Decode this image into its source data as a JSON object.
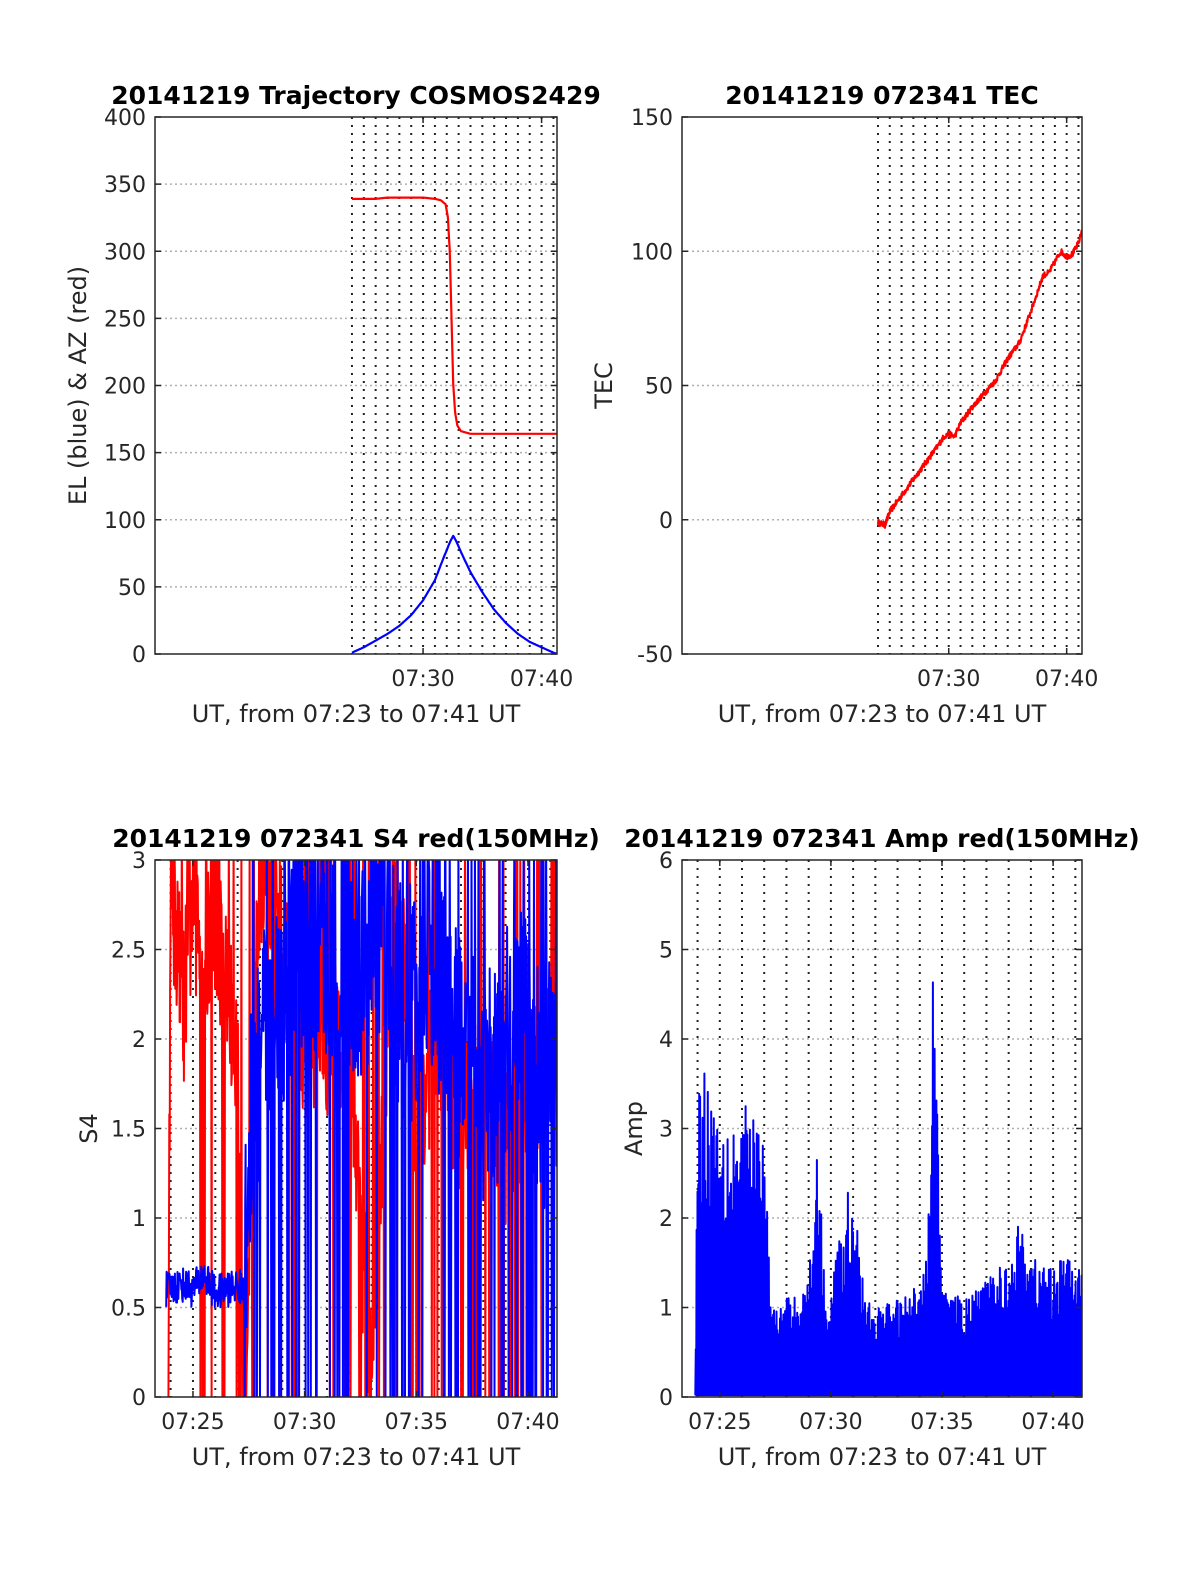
{
  "colors": {
    "el": "#0000ff",
    "az": "#ff0000",
    "tec": "#ff0000",
    "s4_red": "#ff0000",
    "s4_blue": "#0000ff",
    "amp": "#0000ff",
    "grid": "#b0b0b0",
    "axis": "#262626"
  },
  "chart_data": [
    {
      "type": "line",
      "title": "20141219 Trajectory COSMOS2429",
      "xlabel": "UT, from 07:23 to 07:41 UT",
      "ylabel": "EL (blue) & AZ (red)",
      "xlim": [
        7.383,
        41.3
      ],
      "ylim": [
        0,
        400
      ],
      "yticks": [
        0,
        50,
        100,
        150,
        200,
        250,
        300,
        350,
        400
      ],
      "xticks": [
        {
          "v": 30,
          "label": "07:30"
        },
        {
          "v": 40,
          "label": "07:40"
        }
      ],
      "grid": true,
      "series": [
        {
          "key": "az",
          "values": [
            [
              24.0,
              339
            ],
            [
              25.0,
              339
            ],
            [
              26.0,
              339
            ],
            [
              27.0,
              340
            ],
            [
              28.0,
              340
            ],
            [
              29.0,
              340
            ],
            [
              30.0,
              340
            ],
            [
              31.0,
              339
            ],
            [
              31.5,
              338
            ],
            [
              31.9,
              335
            ],
            [
              32.1,
              325
            ],
            [
              32.25,
              300
            ],
            [
              32.4,
              250
            ],
            [
              32.55,
              200
            ],
            [
              32.7,
              180
            ],
            [
              32.9,
              170
            ],
            [
              33.2,
              166
            ],
            [
              34.0,
              164
            ],
            [
              35.0,
              164
            ],
            [
              37.0,
              164
            ],
            [
              39.0,
              164
            ],
            [
              41.3,
              164
            ]
          ]
        },
        {
          "key": "el",
          "values": [
            [
              24.0,
              1
            ],
            [
              25.0,
              5
            ],
            [
              26.0,
              10
            ],
            [
              27.0,
              15
            ],
            [
              28.0,
              21
            ],
            [
              29.0,
              29
            ],
            [
              30.0,
              40
            ],
            [
              31.0,
              55
            ],
            [
              31.7,
              71
            ],
            [
              32.3,
              84
            ],
            [
              32.55,
              88
            ],
            [
              32.8,
              84
            ],
            [
              33.3,
              74
            ],
            [
              34.0,
              61
            ],
            [
              35.0,
              46
            ],
            [
              36.0,
              33
            ],
            [
              37.0,
              23
            ],
            [
              38.0,
              15
            ],
            [
              39.0,
              9
            ],
            [
              40.0,
              5
            ],
            [
              41.0,
              1
            ],
            [
              41.3,
              0
            ]
          ]
        }
      ]
    },
    {
      "type": "line",
      "title": "20141219 072341 TEC",
      "xlabel": "UT, from 07:23 to 07:41 UT",
      "ylabel": "TEC",
      "xlim": [
        7.383,
        41.3
      ],
      "ylim": [
        -50,
        150
      ],
      "yticks": [
        -50,
        0,
        50,
        100,
        150
      ],
      "xticks": [
        {
          "v": 30,
          "label": "07:30"
        },
        {
          "v": 40,
          "label": "07:40"
        }
      ],
      "grid": true,
      "series": [
        {
          "key": "tec",
          "values": [
            [
              24.0,
              -1
            ],
            [
              24.6,
              -2
            ],
            [
              25.0,
              3
            ],
            [
              26.0,
              9
            ],
            [
              27.0,
              15
            ],
            [
              28.0,
              21
            ],
            [
              29.0,
              27
            ],
            [
              29.6,
              31
            ],
            [
              30.0,
              32
            ],
            [
              30.5,
              31
            ],
            [
              31.0,
              36
            ],
            [
              32.0,
              42
            ],
            [
              33.0,
              47
            ],
            [
              34.0,
              52
            ],
            [
              35.0,
              60
            ],
            [
              36.0,
              66
            ],
            [
              37.0,
              78
            ],
            [
              38.0,
              91
            ],
            [
              38.5,
              92
            ],
            [
              39.0,
              96
            ],
            [
              39.5,
              100
            ],
            [
              40.0,
              98
            ],
            [
              40.5,
              99
            ],
            [
              41.0,
              103
            ],
            [
              41.3,
              108
            ]
          ]
        }
      ]
    },
    {
      "type": "line",
      "title": "20141219 072341 S4 red(150MHz)",
      "xlabel": "UT, from 07:23 to 07:41 UT",
      "ylabel": "S4",
      "xlim": [
        23.3,
        41.3
      ],
      "ylim": [
        0,
        3
      ],
      "yticks": [
        0,
        0.5,
        1,
        1.5,
        2,
        2.5,
        3
      ],
      "xticks": [
        {
          "v": 25,
          "label": "07:25"
        },
        {
          "v": 30,
          "label": "07:30"
        },
        {
          "v": 35,
          "label": "07:35"
        },
        {
          "v": 40,
          "label": "07:40"
        }
      ],
      "grid": true,
      "series": [
        {
          "key": "s4_red",
          "style": "noisy",
          "values": [
            [
              23.9,
              0
            ],
            [
              24.0,
              3
            ],
            [
              24.3,
              2.5
            ],
            [
              24.6,
              2.2
            ],
            [
              25.0,
              2.8
            ],
            [
              25.5,
              2.4
            ],
            [
              26.0,
              2.7
            ],
            [
              26.5,
              2.3
            ],
            [
              27.0,
              1.8
            ],
            [
              27.3,
              0
            ],
            [
              28.0,
              3
            ],
            [
              30.0,
              2.0
            ],
            [
              32.0,
              2.0
            ],
            [
              33.0,
              0
            ],
            [
              34.0,
              3
            ],
            [
              35.0,
              1.6
            ],
            [
              36.0,
              2.0
            ],
            [
              37.0,
              1.5
            ],
            [
              38.0,
              1.8
            ],
            [
              39.0,
              1.4
            ],
            [
              40.0,
              1.7
            ],
            [
              41.3,
              2.0
            ]
          ]
        },
        {
          "key": "s4_blue",
          "style": "noisy",
          "values": [
            [
              23.8,
              0.6
            ],
            [
              24.5,
              0.63
            ],
            [
              25.0,
              0.6
            ],
            [
              25.5,
              0.68
            ],
            [
              26.0,
              0.58
            ],
            [
              26.5,
              0.6
            ],
            [
              27.0,
              0.62
            ],
            [
              27.3,
              0.6
            ],
            [
              27.6,
              1.6
            ],
            [
              28.5,
              2.2
            ],
            [
              29.5,
              2.4
            ],
            [
              30.5,
              2.6
            ],
            [
              31.5,
              2.5
            ],
            [
              32.5,
              2.4
            ],
            [
              33.5,
              2.7
            ],
            [
              34.5,
              2.1
            ],
            [
              35.5,
              2.5
            ],
            [
              36.5,
              2.1
            ],
            [
              37.5,
              1.8
            ],
            [
              38.5,
              1.7
            ],
            [
              39.5,
              2.2
            ],
            [
              40.5,
              1.7
            ],
            [
              41.3,
              1.8
            ]
          ]
        }
      ]
    },
    {
      "type": "line",
      "title": "20141219 072341 Amp red(150MHz)",
      "xlabel": "UT, from 07:23 to 07:41 UT",
      "ylabel": "Amp",
      "xlim": [
        23.3,
        41.3
      ],
      "ylim": [
        0,
        6
      ],
      "yticks": [
        0,
        1,
        2,
        3,
        4,
        5,
        6
      ],
      "xticks": [
        {
          "v": 25,
          "label": "07:25"
        },
        {
          "v": 30,
          "label": "07:30"
        },
        {
          "v": 35,
          "label": "07:35"
        },
        {
          "v": 40,
          "label": "07:40"
        }
      ],
      "grid": true,
      "series": [
        {
          "key": "amp",
          "style": "noisy",
          "values": [
            [
              23.9,
              0
            ],
            [
              24.0,
              3.8
            ],
            [
              24.5,
              3.6
            ],
            [
              25.0,
              3.3
            ],
            [
              25.5,
              3.2
            ],
            [
              26.0,
              3.3
            ],
            [
              26.5,
              3.2
            ],
            [
              27.0,
              3.0
            ],
            [
              27.3,
              1.0
            ],
            [
              28.0,
              1.1
            ],
            [
              29.0,
              1.3
            ],
            [
              29.4,
              2.9
            ],
            [
              29.8,
              1.0
            ],
            [
              31.0,
              2.6
            ],
            [
              31.5,
              1.1
            ],
            [
              32.0,
              1.0
            ],
            [
              33.0,
              1.1
            ],
            [
              34.0,
              1.3
            ],
            [
              34.4,
              2.1
            ],
            [
              34.6,
              5.3
            ],
            [
              35.0,
              1.2
            ],
            [
              36.0,
              1.1
            ],
            [
              37.0,
              1.3
            ],
            [
              38.0,
              1.6
            ],
            [
              38.5,
              2.0
            ],
            [
              39.0,
              1.6
            ],
            [
              40.0,
              1.5
            ],
            [
              40.5,
              1.6
            ],
            [
              41.3,
              1.4
            ]
          ]
        }
      ]
    }
  ]
}
